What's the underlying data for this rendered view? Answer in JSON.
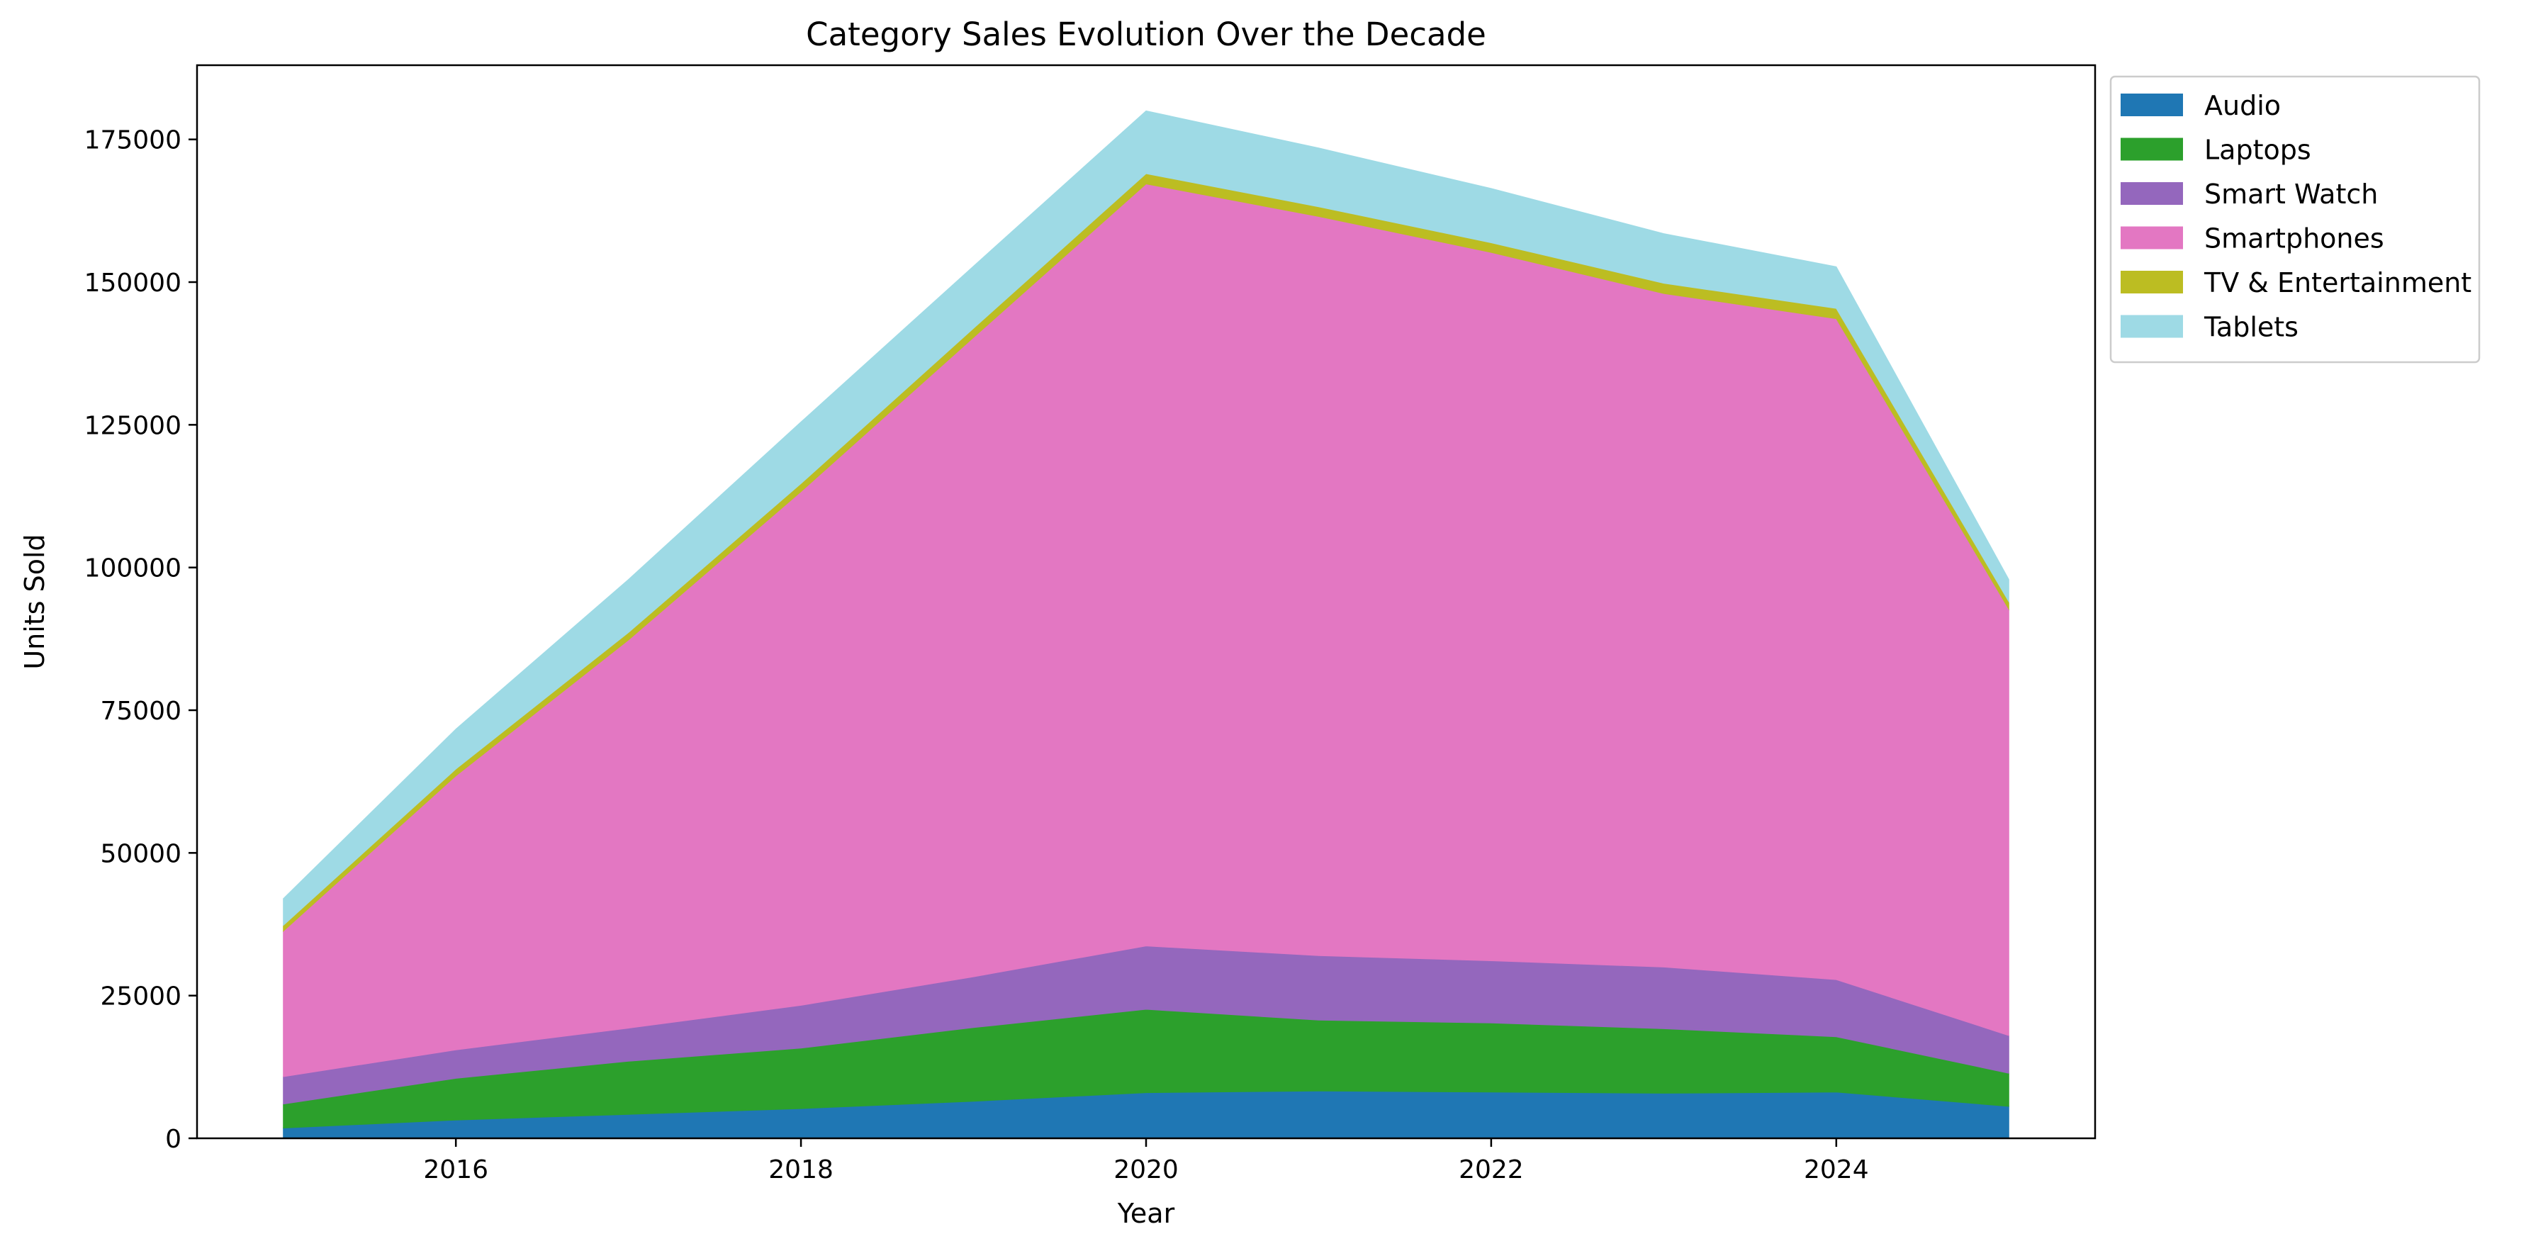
{
  "chart_data": {
    "type": "area",
    "stacked": true,
    "title": "Category Sales Evolution Over the Decade",
    "xlabel": "Year",
    "ylabel": "Units Sold",
    "x": [
      2015,
      2016,
      2017,
      2018,
      2019,
      2020,
      2021,
      2022,
      2023,
      2024,
      2025
    ],
    "xlim": [
      2014.5,
      2025.5
    ],
    "ylim": [
      0,
      188000
    ],
    "xticks": [
      2016,
      2018,
      2020,
      2022,
      2024
    ],
    "yticks": [
      0,
      25000,
      50000,
      75000,
      100000,
      125000,
      150000,
      175000
    ],
    "grid": false,
    "legend_position": "outside-top-right",
    "series": [
      {
        "name": "Audio",
        "color": "#1f77b4",
        "values": [
          1800,
          3200,
          4200,
          5200,
          6500,
          8000,
          8300,
          8100,
          7900,
          8100,
          5600
        ]
      },
      {
        "name": "Laptops",
        "color": "#2ca02c",
        "values": [
          4200,
          7300,
          9300,
          10600,
          12900,
          14600,
          12400,
          12100,
          11300,
          9700,
          5800
        ]
      },
      {
        "name": "Smart Watch",
        "color": "#9467bd",
        "values": [
          4800,
          5000,
          5800,
          7500,
          8900,
          11100,
          11300,
          10900,
          10800,
          10000,
          6600
        ]
      },
      {
        "name": "Smartphones",
        "color": "#e377c2",
        "values": [
          25500,
          48000,
          68000,
          90000,
          112000,
          133500,
          129500,
          124100,
          118000,
          115800,
          74700
        ]
      },
      {
        "name": "TV & Entertainment",
        "color": "#bcbd22",
        "values": [
          1000,
          1200,
          1300,
          1400,
          1600,
          1800,
          1700,
          1700,
          1800,
          1800,
          1300
        ]
      },
      {
        "name": "Tablets",
        "color": "#9edae5",
        "values": [
          4700,
          7000,
          9300,
          10800,
          10900,
          11000,
          10300,
          9500,
          8700,
          7300,
          3900
        ]
      }
    ]
  }
}
